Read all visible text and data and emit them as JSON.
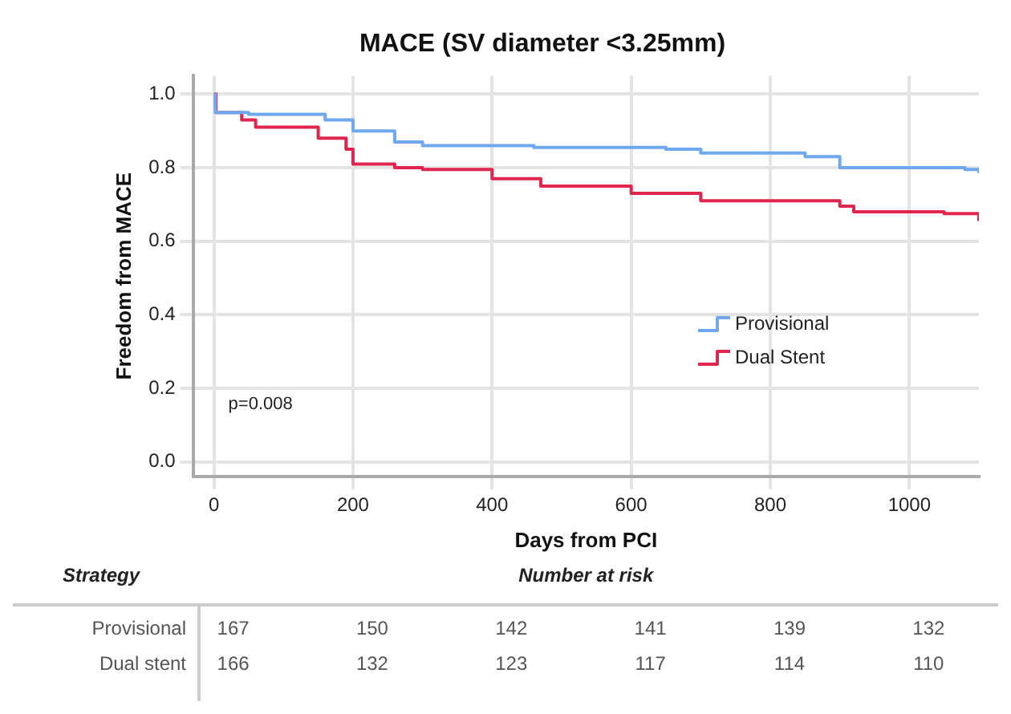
{
  "chart_data": {
    "type": "step",
    "title": "MACE (SV diameter <3.25mm)",
    "xlabel": "Days from PCI",
    "ylabel": "Freedom from MACE",
    "series": [
      {
        "name": "Provisional",
        "color": "#6fa8ef",
        "x": [
          0,
          2,
          50,
          160,
          200,
          260,
          300,
          460,
          650,
          700,
          850,
          900,
          1080,
          1100
        ],
        "values": [
          1.0,
          0.95,
          0.945,
          0.93,
          0.9,
          0.87,
          0.86,
          0.855,
          0.85,
          0.84,
          0.83,
          0.8,
          0.795,
          0.785
        ]
      },
      {
        "name": "Dual Stent",
        "color": "#e0264f",
        "x": [
          0,
          3,
          40,
          60,
          150,
          190,
          200,
          260,
          300,
          400,
          470,
          600,
          700,
          900,
          920,
          1050,
          1100
        ],
        "values": [
          1.0,
          0.95,
          0.93,
          0.91,
          0.88,
          0.85,
          0.81,
          0.8,
          0.795,
          0.77,
          0.75,
          0.73,
          0.71,
          0.695,
          0.68,
          0.675,
          0.655
        ]
      }
    ],
    "xlim": [
      -30,
      1100
    ],
    "ylim": [
      -0.04,
      1.05
    ],
    "xticks": [
      0,
      200,
      400,
      600,
      800,
      1000
    ],
    "yticks": [
      {
        "value": 0,
        "label": "0.0"
      },
      {
        "value": 0.2,
        "label": "0.2"
      },
      {
        "value": 0.4,
        "label": "0.4"
      },
      {
        "value": 0.6,
        "label": "0.6"
      },
      {
        "value": 0.8,
        "label": "0.8"
      },
      {
        "value": 1,
        "label": "1.0"
      }
    ],
    "grid": true,
    "legend": "bottom right",
    "annotations": [
      "p=0.008",
      "Strategy",
      "Number at risk",
      "Provisional",
      "167",
      "150",
      "142",
      "141",
      "139",
      "132",
      "Dual stent",
      "166",
      "132",
      "123",
      "117",
      "114",
      "110"
    ]
  }
}
